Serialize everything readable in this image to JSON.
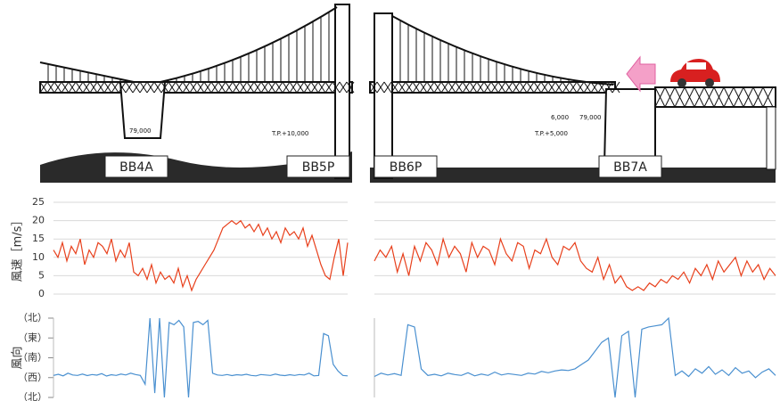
{
  "drawings": {
    "labels": [
      "BB4A",
      "BB5P",
      "BB6P",
      "BB7A"
    ],
    "notes": [
      "T.P.+10,000",
      "79,000",
      "T.P.+5,000",
      "6,000",
      "79,000"
    ]
  },
  "chart_data": [
    {
      "type": "line",
      "y_label": "風速［m/s］",
      "color": "#e8401c",
      "ylim": [
        0,
        25
      ],
      "yticks": [
        0,
        5,
        10,
        15,
        20,
        25
      ],
      "grid": true,
      "values": [
        12,
        10,
        14,
        9,
        13,
        11,
        15,
        8,
        12,
        10,
        14,
        13,
        11,
        15,
        9,
        12,
        10,
        14,
        6,
        5,
        7,
        4,
        8,
        3,
        6,
        4,
        5,
        3,
        7,
        2,
        5,
        1,
        4,
        6,
        8,
        10,
        12,
        15,
        18,
        19,
        20,
        19,
        20,
        18,
        19,
        17,
        19,
        16,
        18,
        15,
        17,
        14,
        18,
        16,
        17,
        15,
        18,
        13,
        16,
        12,
        8,
        5,
        4,
        10,
        15,
        5,
        14
      ]
    },
    {
      "type": "line",
      "color": "#e8401c",
      "ylim": [
        0,
        25
      ],
      "yticks": [
        0,
        5,
        10,
        15,
        20,
        25
      ],
      "grid": true,
      "values": [
        9,
        12,
        10,
        13,
        6,
        11,
        5,
        13,
        9,
        14,
        12,
        8,
        15,
        10,
        13,
        11,
        6,
        14,
        10,
        13,
        12,
        8,
        15,
        11,
        9,
        14,
        13,
        7,
        12,
        11,
        15,
        10,
        8,
        13,
        12,
        14,
        9,
        7,
        6,
        10,
        4,
        8,
        3,
        5,
        2,
        1,
        2,
        1,
        3,
        2,
        4,
        3,
        5,
        4,
        6,
        3,
        7,
        5,
        8,
        4,
        9,
        6,
        8,
        10,
        5,
        9,
        6,
        8,
        4,
        7,
        5
      ]
    },
    {
      "type": "line",
      "y_label": "風向",
      "color": "#4a90d0",
      "ylim": [
        0,
        360
      ],
      "yticks": [
        {
          "value": 360,
          "label": "（北）"
        },
        {
          "value": 270,
          "label": "（東）"
        },
        {
          "value": 180,
          "label": "（南）"
        },
        {
          "value": 90,
          "label": "（西）"
        },
        {
          "value": 0,
          "label": "（北）"
        }
      ],
      "grid": false,
      "values": [
        100,
        105,
        98,
        110,
        102,
        100,
        106,
        99,
        104,
        101,
        108,
        97,
        103,
        100,
        106,
        102,
        110,
        104,
        100,
        60,
        360,
        20,
        360,
        0,
        340,
        330,
        350,
        320,
        0,
        340,
        345,
        330,
        350,
        110,
        102,
        100,
        104,
        99,
        103,
        101,
        105,
        100,
        98,
        104,
        102,
        100,
        106,
        101,
        99,
        103,
        100,
        104,
        102,
        110,
        98,
        100,
        290,
        280,
        150,
        120,
        100,
        98
      ]
    },
    {
      "type": "line",
      "color": "#4a90d0",
      "ylim": [
        0,
        360
      ],
      "values": [
        95,
        110,
        102,
        108,
        100,
        330,
        320,
        130,
        100,
        105,
        98,
        110,
        104,
        100,
        112,
        98,
        106,
        100,
        115,
        102,
        108,
        104,
        100,
        110,
        106,
        118,
        112,
        120,
        125,
        122,
        130,
        150,
        170,
        210,
        250,
        270,
        0,
        280,
        300,
        0,
        310,
        320,
        325,
        330,
        360,
        100,
        120,
        95,
        130,
        110,
        140,
        105,
        125,
        100,
        135,
        110,
        120,
        90,
        115,
        130,
        100
      ]
    }
  ]
}
